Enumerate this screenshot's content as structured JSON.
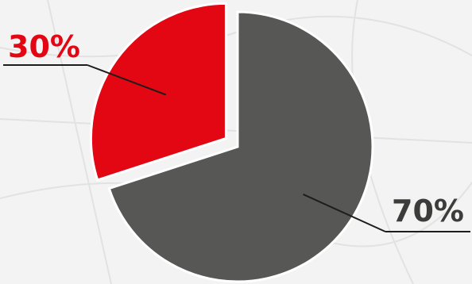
{
  "chart_data": {
    "type": "pie",
    "values": [
      70,
      30
    ],
    "value_labels": [
      "70%",
      "30%"
    ],
    "colors": [
      "#575756",
      "#e30613"
    ],
    "label_colors": [
      "#3c3c3b",
      "#e30613"
    ]
  }
}
